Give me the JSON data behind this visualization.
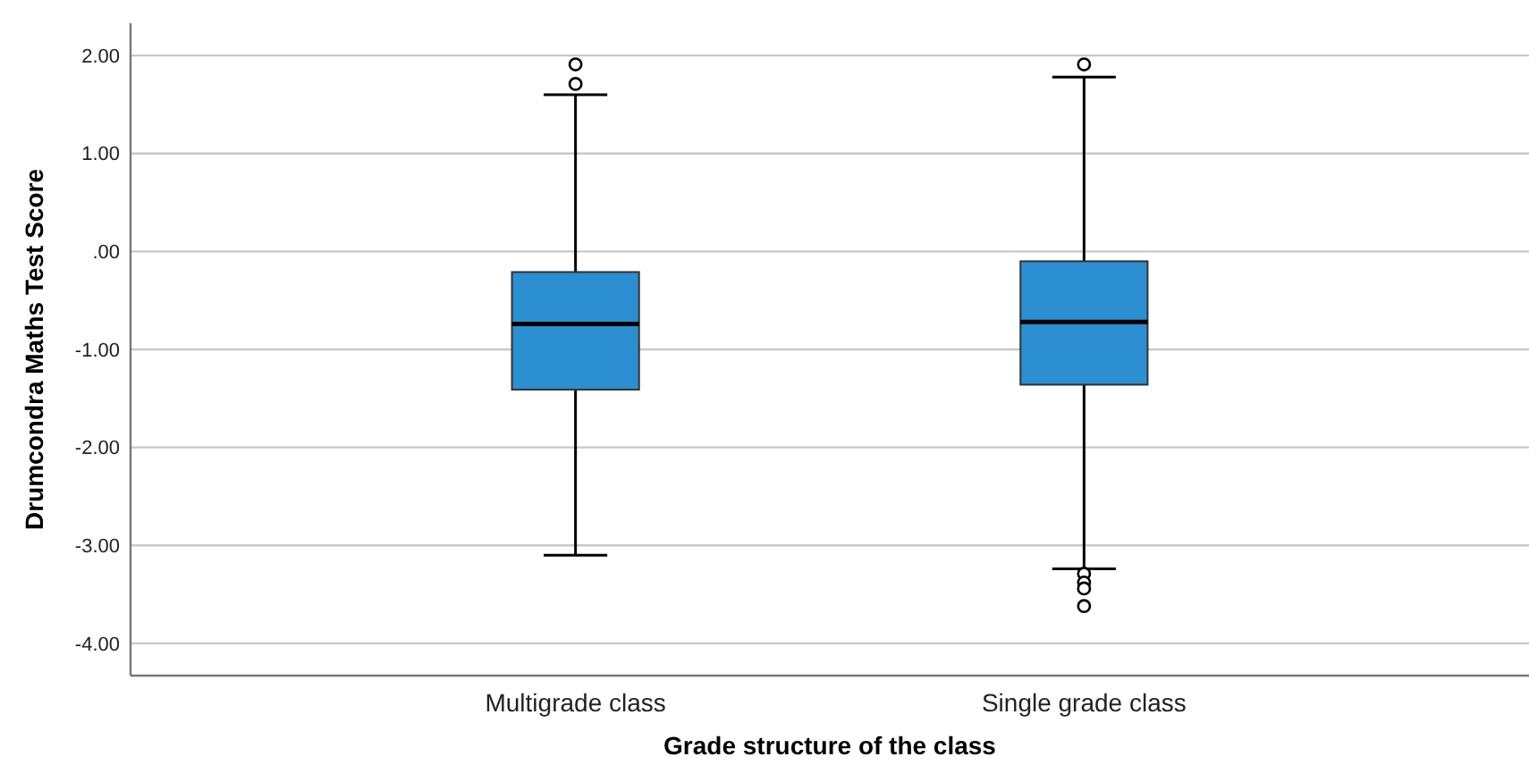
{
  "chart_data": {
    "type": "box",
    "xlabel": "Grade structure of the class",
    "ylabel": "Drumcondra Maths Test Score",
    "categories": [
      "Multigrade class",
      "Single grade class"
    ],
    "boxes": [
      {
        "low": -3.1,
        "q1": -1.41,
        "median": -0.74,
        "q3": -0.21,
        "high": 1.6,
        "outliers": [
          1.91,
          1.71
        ]
      },
      {
        "low": -3.24,
        "q1": -1.36,
        "median": -0.72,
        "q3": -0.1,
        "high": 1.78,
        "outliers": [
          1.91,
          -3.29,
          -3.38,
          -3.44,
          -3.62
        ]
      }
    ],
    "color": "#2b8fd1",
    "ylim": [
      -4.33,
      2.33
    ],
    "yticks": [
      {
        "value": -4,
        "label": "-4.00"
      },
      {
        "value": -3,
        "label": "-3.00"
      },
      {
        "value": -2,
        "label": "-2.00"
      },
      {
        "value": -1,
        "label": "-1.00"
      },
      {
        "value": 0,
        "label": ".00"
      },
      {
        "value": 1,
        "label": "1.00"
      },
      {
        "value": 2,
        "label": "2.00"
      }
    ],
    "grid": "y"
  }
}
